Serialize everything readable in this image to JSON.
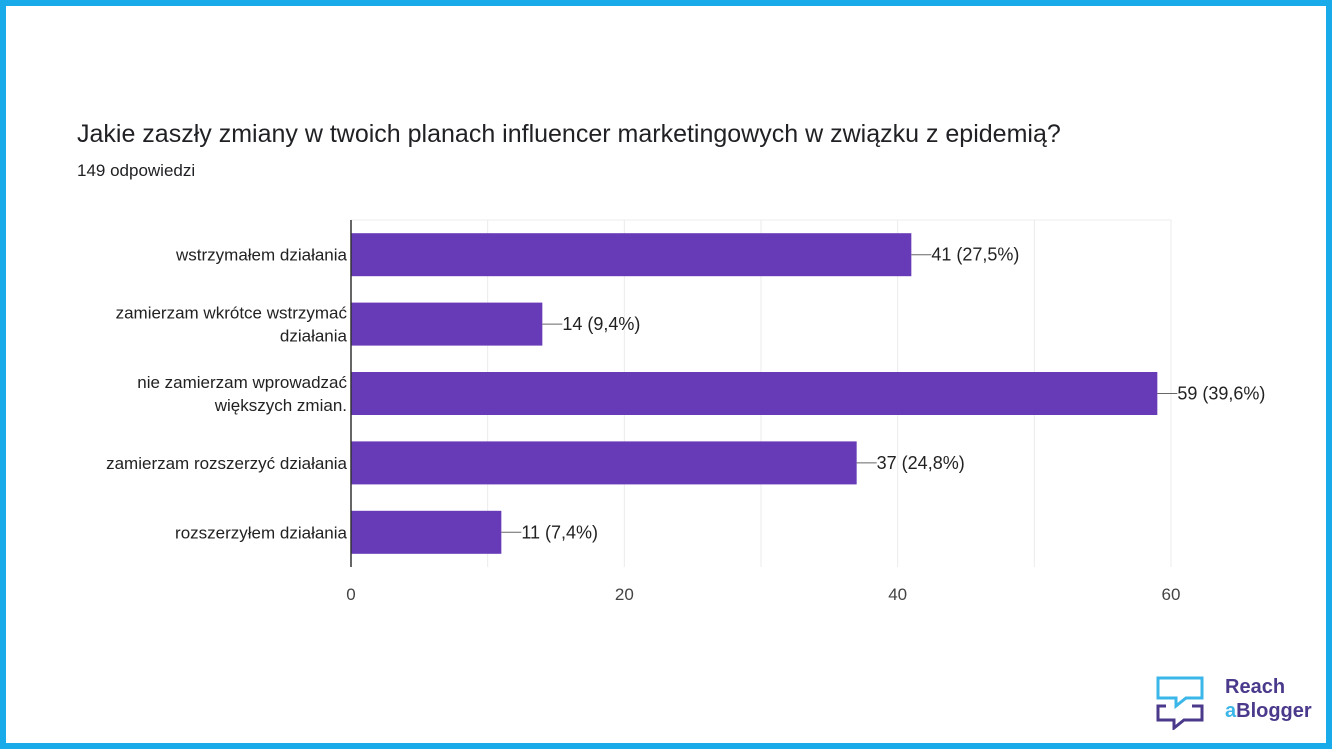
{
  "chart_data": {
    "type": "bar",
    "orientation": "horizontal",
    "title": "Jakie zaszły zmiany w twoich planach influencer marketingowych w związku z epidemią?",
    "subtitle": "149 odpowiedzi",
    "categories": [
      [
        "wstrzymałem działania"
      ],
      [
        "zamierzam wkrótce wstrzymać",
        "działania"
      ],
      [
        "nie zamierzam wprowadzać",
        "większych zmian."
      ],
      [
        "zamierzam rozszerzyć działania"
      ],
      [
        "rozszerzyłem działania"
      ]
    ],
    "values": [
      41,
      14,
      59,
      37,
      11
    ],
    "data_labels": [
      "41 (27,5%)",
      "14 (9,4%)",
      "59 (39,6%)",
      "37 (24,8%)",
      "11 (7,4%)"
    ],
    "xlim": [
      0,
      60
    ],
    "xticks": [
      0,
      20,
      40,
      60
    ],
    "grid": true,
    "bar_color": "#673ab7"
  },
  "logo": {
    "line1": "Reach",
    "line2_a": "a",
    "line2_rest": "Blogger"
  },
  "colors": {
    "border": "#19aaea"
  }
}
